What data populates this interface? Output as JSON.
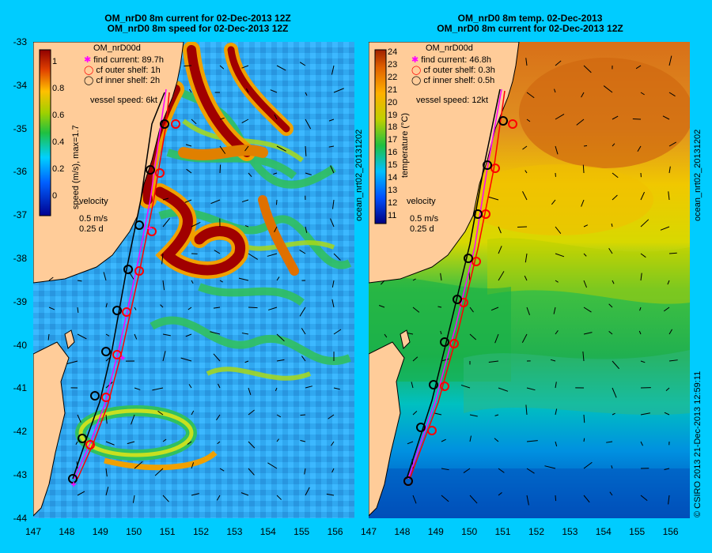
{
  "left_panel": {
    "title_line1": "OM_nrD0 8m current for 02-Dec-2013 12Z",
    "title_line2": "OM_nrD0 8m speed for 02-Dec-2013 12Z",
    "model": "OM_nrD00d",
    "legend": [
      "find current: 89.7h",
      "cf outer shelf: 1h",
      "cf inner shelf: 2h"
    ],
    "vessel_speed": "vessel speed: 6kt",
    "colorbar_label": "speed (m/s), max=1.7",
    "colorbar_ticks": [
      "1",
      "0.8",
      "0.6",
      "0.4",
      "0.2",
      "0"
    ],
    "velocity_label": "velocity",
    "velocity_scale": "0.5 m/s",
    "velocity_time": "0.25 d",
    "side_tag": "ocean_nrt02_20131202"
  },
  "right_panel": {
    "title_line1": "OM_nrD0 8m temp. 02-Dec-2013",
    "title_line2": "OM_nrD0 8m current for 02-Dec-2013 12Z",
    "model": "OM_nrD00d",
    "legend": [
      "find current: 46.8h",
      "cf outer shelf: 0.3h",
      "cf inner shelf: 0.5h"
    ],
    "vessel_speed": "vessel speed: 12kt",
    "colorbar_label": "temperature (°C)",
    "colorbar_ticks": [
      "24",
      "23",
      "22",
      "21",
      "20",
      "19",
      "18",
      "17",
      "16",
      "15",
      "14",
      "13",
      "12",
      "11"
    ],
    "velocity_label": "velocity",
    "velocity_scale": "0.5 m/s",
    "velocity_time": "0.25 d",
    "side_tag": "ocean_nrt02_20131202"
  },
  "y_ticks": [
    "-33",
    "-34",
    "-35",
    "-36",
    "-37",
    "-38",
    "-39",
    "-40",
    "-41",
    "-42",
    "-43",
    "-44"
  ],
  "x_ticks": [
    "147",
    "148",
    "149",
    "150",
    "151",
    "152",
    "153",
    "154",
    "155",
    "156"
  ],
  "copyright": "© CSIRO 2013   21-Dec-2013 12:59:11",
  "colors": {
    "background": "#00ccff",
    "land": "#ffcc99",
    "track_outer": "#ff0000",
    "track_inner": "#000000",
    "track_find": "#ff00ff"
  }
}
